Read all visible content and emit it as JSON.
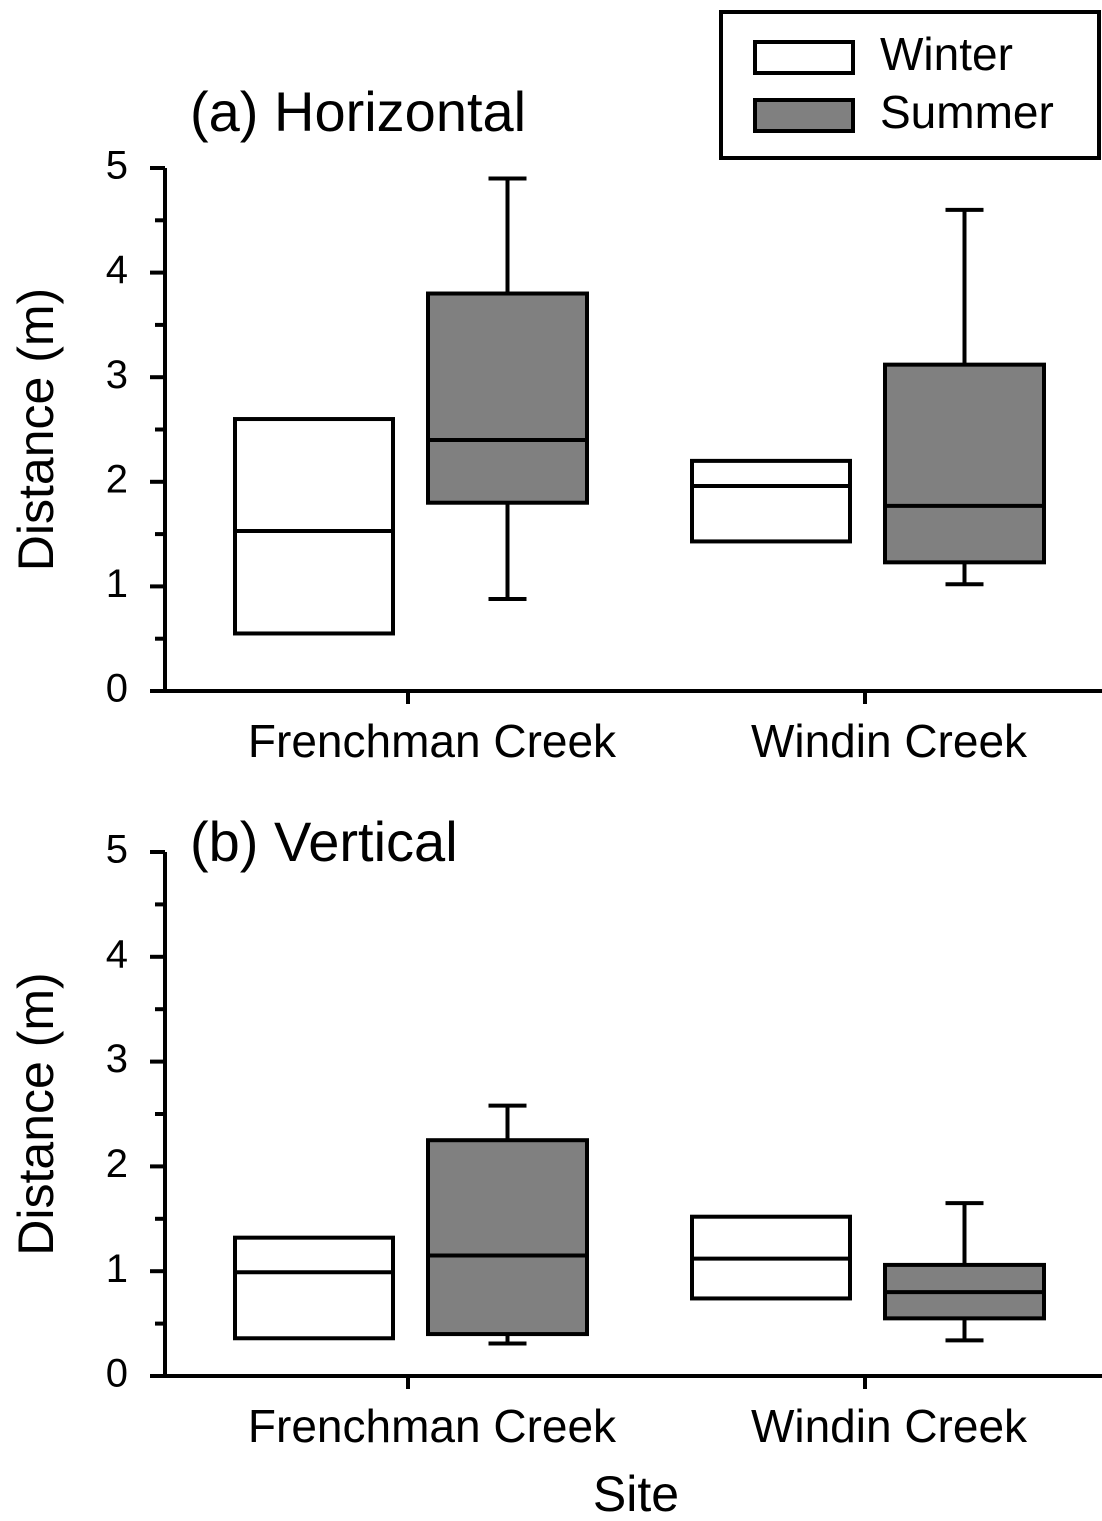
{
  "chart_data": [
    {
      "type": "box",
      "title": "(a) Horizontal",
      "y_label": "Distance (m)",
      "categories": [
        "Frenchman Creek",
        "Windin Creek"
      ],
      "ylim": [
        0,
        5
      ],
      "yticks": [
        0,
        1,
        2,
        3,
        4,
        5
      ],
      "yminorticks": [
        0.5,
        1.5,
        2.5,
        3.5,
        4.5
      ],
      "legend": "upper right",
      "series": [
        {
          "name": "Winter",
          "color": "#ffffff",
          "min": [
            null,
            null
          ],
          "q1": [
            0.55,
            1.43
          ],
          "median": [
            1.53,
            1.96
          ],
          "q3": [
            2.6,
            2.2
          ],
          "max": [
            null,
            null
          ]
        },
        {
          "name": "Summer",
          "color": "#808080",
          "min": [
            0.88,
            1.02
          ],
          "q1": [
            1.8,
            1.23
          ],
          "median": [
            2.4,
            1.77
          ],
          "q3": [
            3.8,
            3.12
          ],
          "max": [
            4.9,
            4.6
          ]
        }
      ]
    },
    {
      "type": "box",
      "title": "(b) Vertical",
      "y_label": "Distance (m)",
      "x_label": "Site",
      "categories": [
        "Frenchman Creek",
        "Windin Creek"
      ],
      "ylim": [
        0,
        5
      ],
      "yticks": [
        0,
        1,
        2,
        3,
        4,
        5
      ],
      "yminorticks": [
        0.5,
        1.5,
        2.5,
        3.5,
        4.5
      ],
      "series": [
        {
          "color": "#ffffff",
          "min": [
            null,
            null
          ],
          "q1": [
            0.36,
            0.74
          ],
          "median": [
            0.99,
            1.12
          ],
          "q3": [
            1.32,
            1.52
          ],
          "max": [
            null,
            null
          ]
        },
        {
          "color": "#808080",
          "min": [
            0.31,
            0.34
          ],
          "q1": [
            0.4,
            0.55
          ],
          "median": [
            1.15,
            0.8
          ],
          "q3": [
            2.25,
            1.06
          ],
          "max": [
            2.58,
            1.65
          ]
        }
      ]
    }
  ]
}
